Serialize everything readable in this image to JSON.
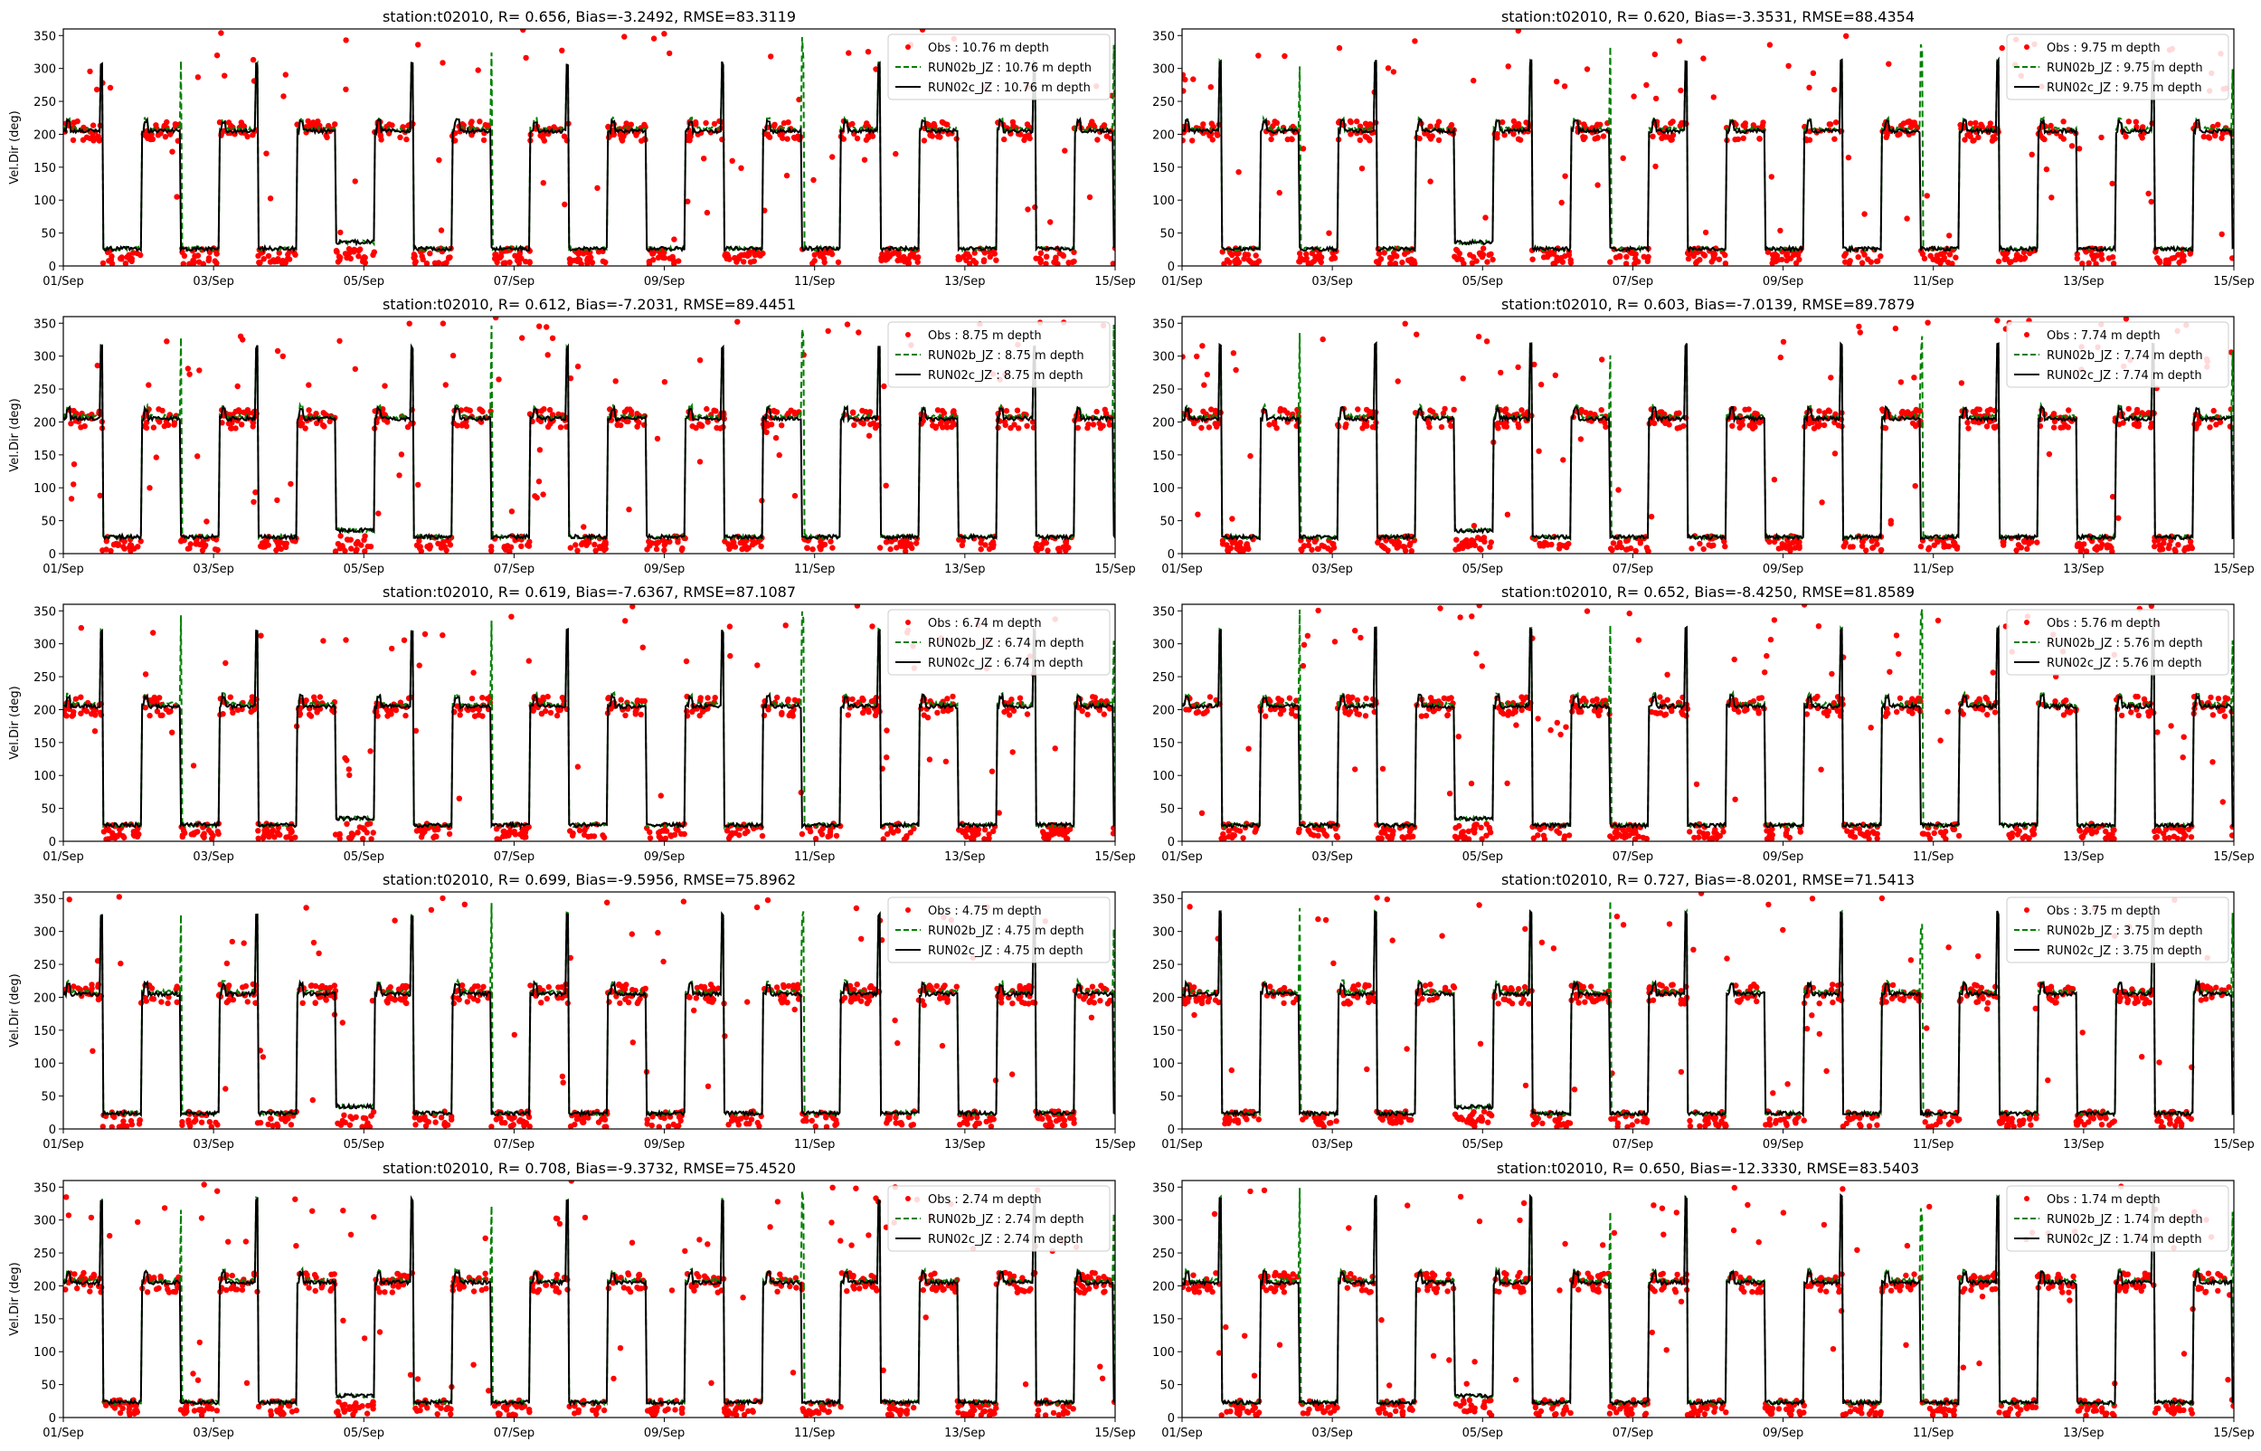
{
  "figure": {
    "colors": {
      "obs": "#ff0000",
      "run02b": "#008000",
      "run02c": "#000000"
    },
    "y_ticks": [
      0,
      50,
      100,
      150,
      200,
      250,
      300,
      350
    ],
    "x_ticks": [
      "01/Sep",
      "03/Sep",
      "05/Sep",
      "07/Sep",
      "09/Sep",
      "11/Sep",
      "13/Sep",
      "15/Sep"
    ]
  },
  "chart_data": [
    {
      "type": "line",
      "title": "station:t02010, R= 0.656, Bias=-3.2492, RMSE=83.3119",
      "ylabel": "Vel.Dir (deg)",
      "xlim": [
        "01/Sep",
        "15/Sep"
      ],
      "ylim": [
        0,
        360
      ],
      "legend_position": "top-right",
      "depth_m": 10.76,
      "legend": [
        "Obs : 10.76 m depth",
        "RUN02b_JZ : 10.76 m depth",
        "RUN02c_JZ : 10.76 m depth"
      ]
    },
    {
      "type": "line",
      "title": "station:t02010, R= 0.620, Bias=-3.3531, RMSE=88.4354",
      "ylabel": "",
      "xlim": [
        "01/Sep",
        "15/Sep"
      ],
      "ylim": [
        0,
        360
      ],
      "legend_position": "top-right",
      "depth_m": 9.75,
      "legend": [
        "Obs : 9.75 m depth",
        "RUN02b_JZ : 9.75 m depth",
        "RUN02c_JZ : 9.75 m depth"
      ]
    },
    {
      "type": "line",
      "title": "station:t02010, R= 0.612, Bias=-7.2031, RMSE=89.4451",
      "ylabel": "Vel.Dir (deg)",
      "xlim": [
        "01/Sep",
        "15/Sep"
      ],
      "ylim": [
        0,
        360
      ],
      "legend_position": "top-right",
      "depth_m": 8.75,
      "legend": [
        "Obs : 8.75 m depth",
        "RUN02b_JZ : 8.75 m depth",
        "RUN02c_JZ : 8.75 m depth"
      ]
    },
    {
      "type": "line",
      "title": "station:t02010, R= 0.603, Bias=-7.0139, RMSE=89.7879",
      "ylabel": "",
      "xlim": [
        "01/Sep",
        "15/Sep"
      ],
      "ylim": [
        0,
        360
      ],
      "legend_position": "top-right",
      "depth_m": 7.74,
      "legend": [
        "Obs : 7.74 m depth",
        "RUN02b_JZ : 7.74 m depth",
        "RUN02c_JZ : 7.74 m depth"
      ]
    },
    {
      "type": "line",
      "title": "station:t02010, R= 0.619, Bias=-7.6367, RMSE=87.1087",
      "ylabel": "Vel.Dir (deg)",
      "xlim": [
        "01/Sep",
        "15/Sep"
      ],
      "ylim": [
        0,
        360
      ],
      "legend_position": "top-right",
      "depth_m": 6.74,
      "legend": [
        "Obs : 6.74 m depth",
        "RUN02b_JZ : 6.74 m depth",
        "RUN02c_JZ : 6.74 m depth"
      ]
    },
    {
      "type": "line",
      "title": "station:t02010, R= 0.652, Bias=-8.4250, RMSE=81.8589",
      "ylabel": "",
      "xlim": [
        "01/Sep",
        "15/Sep"
      ],
      "ylim": [
        0,
        360
      ],
      "legend_position": "top-right",
      "depth_m": 5.76,
      "legend": [
        "Obs : 5.76 m depth",
        "RUN02b_JZ : 5.76 m depth",
        "RUN02c_JZ : 5.76 m depth"
      ]
    },
    {
      "type": "line",
      "title": "station:t02010, R= 0.699, Bias=-9.5956, RMSE=75.8962",
      "ylabel": "Vel.Dir (deg)",
      "xlim": [
        "01/Sep",
        "15/Sep"
      ],
      "ylim": [
        0,
        360
      ],
      "legend_position": "top-right",
      "depth_m": 4.75,
      "legend": [
        "Obs : 4.75 m depth",
        "RUN02b_JZ : 4.75 m depth",
        "RUN02c_JZ : 4.75 m depth"
      ]
    },
    {
      "type": "line",
      "title": "station:t02010, R= 0.727, Bias=-8.0201, RMSE=71.5413",
      "ylabel": "",
      "xlim": [
        "01/Sep",
        "15/Sep"
      ],
      "ylim": [
        0,
        360
      ],
      "legend_position": "top-right",
      "depth_m": 3.75,
      "legend": [
        "Obs : 3.75 m depth",
        "RUN02b_JZ : 3.75 m depth",
        "RUN02c_JZ : 3.75 m depth"
      ]
    },
    {
      "type": "line",
      "title": "station:t02010, R= 0.708, Bias=-9.3732, RMSE=75.4520",
      "ylabel": "Vel.Dir (deg)",
      "xlim": [
        "01/Sep",
        "15/Sep"
      ],
      "ylim": [
        0,
        360
      ],
      "legend_position": "top-right",
      "depth_m": 2.74,
      "legend": [
        "Obs : 2.74 m depth",
        "RUN02b_JZ : 2.74 m depth",
        "RUN02c_JZ : 2.74 m depth"
      ]
    },
    {
      "type": "line",
      "title": "station:t02010, R= 0.650, Bias=-12.3330, RMSE=83.5403",
      "ylabel": "",
      "xlim": [
        "01/Sep",
        "15/Sep"
      ],
      "ylim": [
        0,
        360
      ],
      "legend_position": "top-right",
      "depth_m": 1.74,
      "legend": [
        "Obs : 1.74 m depth",
        "RUN02b_JZ : 1.74 m depth",
        "RUN02c_JZ : 1.74 m depth"
      ]
    }
  ]
}
